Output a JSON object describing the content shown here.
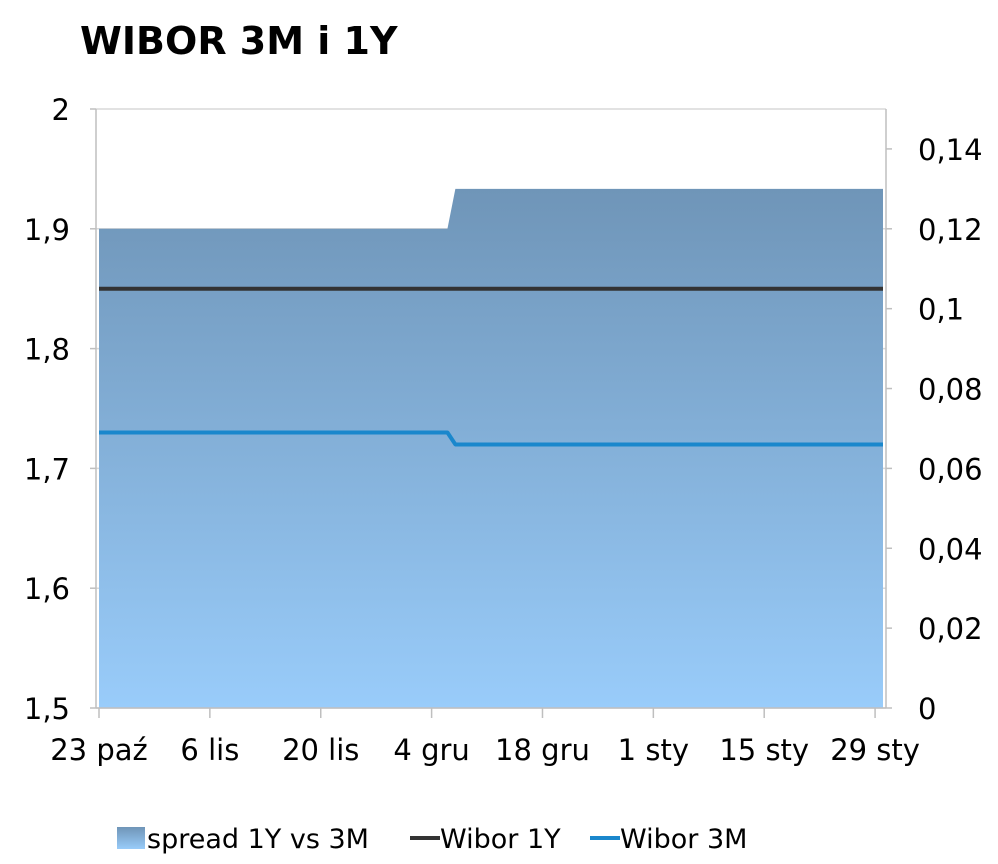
{
  "chart_data": {
    "type": "area",
    "title": "WIBOR 3M i 1Y",
    "x_tick_labels": [
      "23 paź",
      "6 lis",
      "20 lis",
      "4 gru",
      "18 gru",
      "1 sty",
      "15 sty",
      "29 sty"
    ],
    "x_tick_dates": [
      "2011-10-23",
      "2011-11-06",
      "2011-11-20",
      "2011-12-04",
      "2011-12-18",
      "2012-01-01",
      "2012-01-15",
      "2012-01-29"
    ],
    "x_range": [
      "2011-10-23",
      "2012-01-30"
    ],
    "y_left": {
      "ylim": [
        1.5,
        2.0
      ],
      "ticks": [
        "1,5",
        "1,6",
        "1,7",
        "1,8",
        "1,9",
        "2"
      ],
      "tick_values": [
        1.5,
        1.6,
        1.7,
        1.8,
        1.9,
        2.0
      ]
    },
    "y_right": {
      "ylim": [
        0,
        0.15
      ],
      "ticks": [
        "0",
        "0,02",
        "0,04",
        "0,06",
        "0,08",
        "0,1",
        "0,12",
        "0,14"
      ],
      "tick_values": [
        0,
        0.02,
        0.04,
        0.06,
        0.08,
        0.1,
        0.12,
        0.14
      ]
    },
    "grid": "horizontal at left-axis ticks",
    "legend_position": "bottom",
    "series": [
      {
        "name": "spread 1Y vs 3M",
        "type": "area",
        "axis": "right",
        "x": [
          "2011-10-23",
          "2011-12-06",
          "2011-12-07",
          "2012-01-30"
        ],
        "values": [
          0.12,
          0.12,
          0.13,
          0.13
        ]
      },
      {
        "name": "Wibor 1Y",
        "type": "line",
        "axis": "left",
        "x": [
          "2011-10-23",
          "2012-01-30"
        ],
        "values": [
          1.85,
          1.85
        ]
      },
      {
        "name": "Wibor 3M",
        "type": "line",
        "axis": "left",
        "x": [
          "2011-10-23",
          "2011-12-06",
          "2011-12-07",
          "2012-01-30"
        ],
        "values": [
          1.73,
          1.73,
          1.72,
          1.72
        ]
      }
    ],
    "colors": {
      "spread_top": "#6f95b8",
      "spread_bottom": "#99ccfa",
      "wibor_1y": "#333333",
      "wibor_3m": "#1a87cc",
      "grid": "#d9d9d9",
      "axis": "#bfbfbf"
    }
  }
}
